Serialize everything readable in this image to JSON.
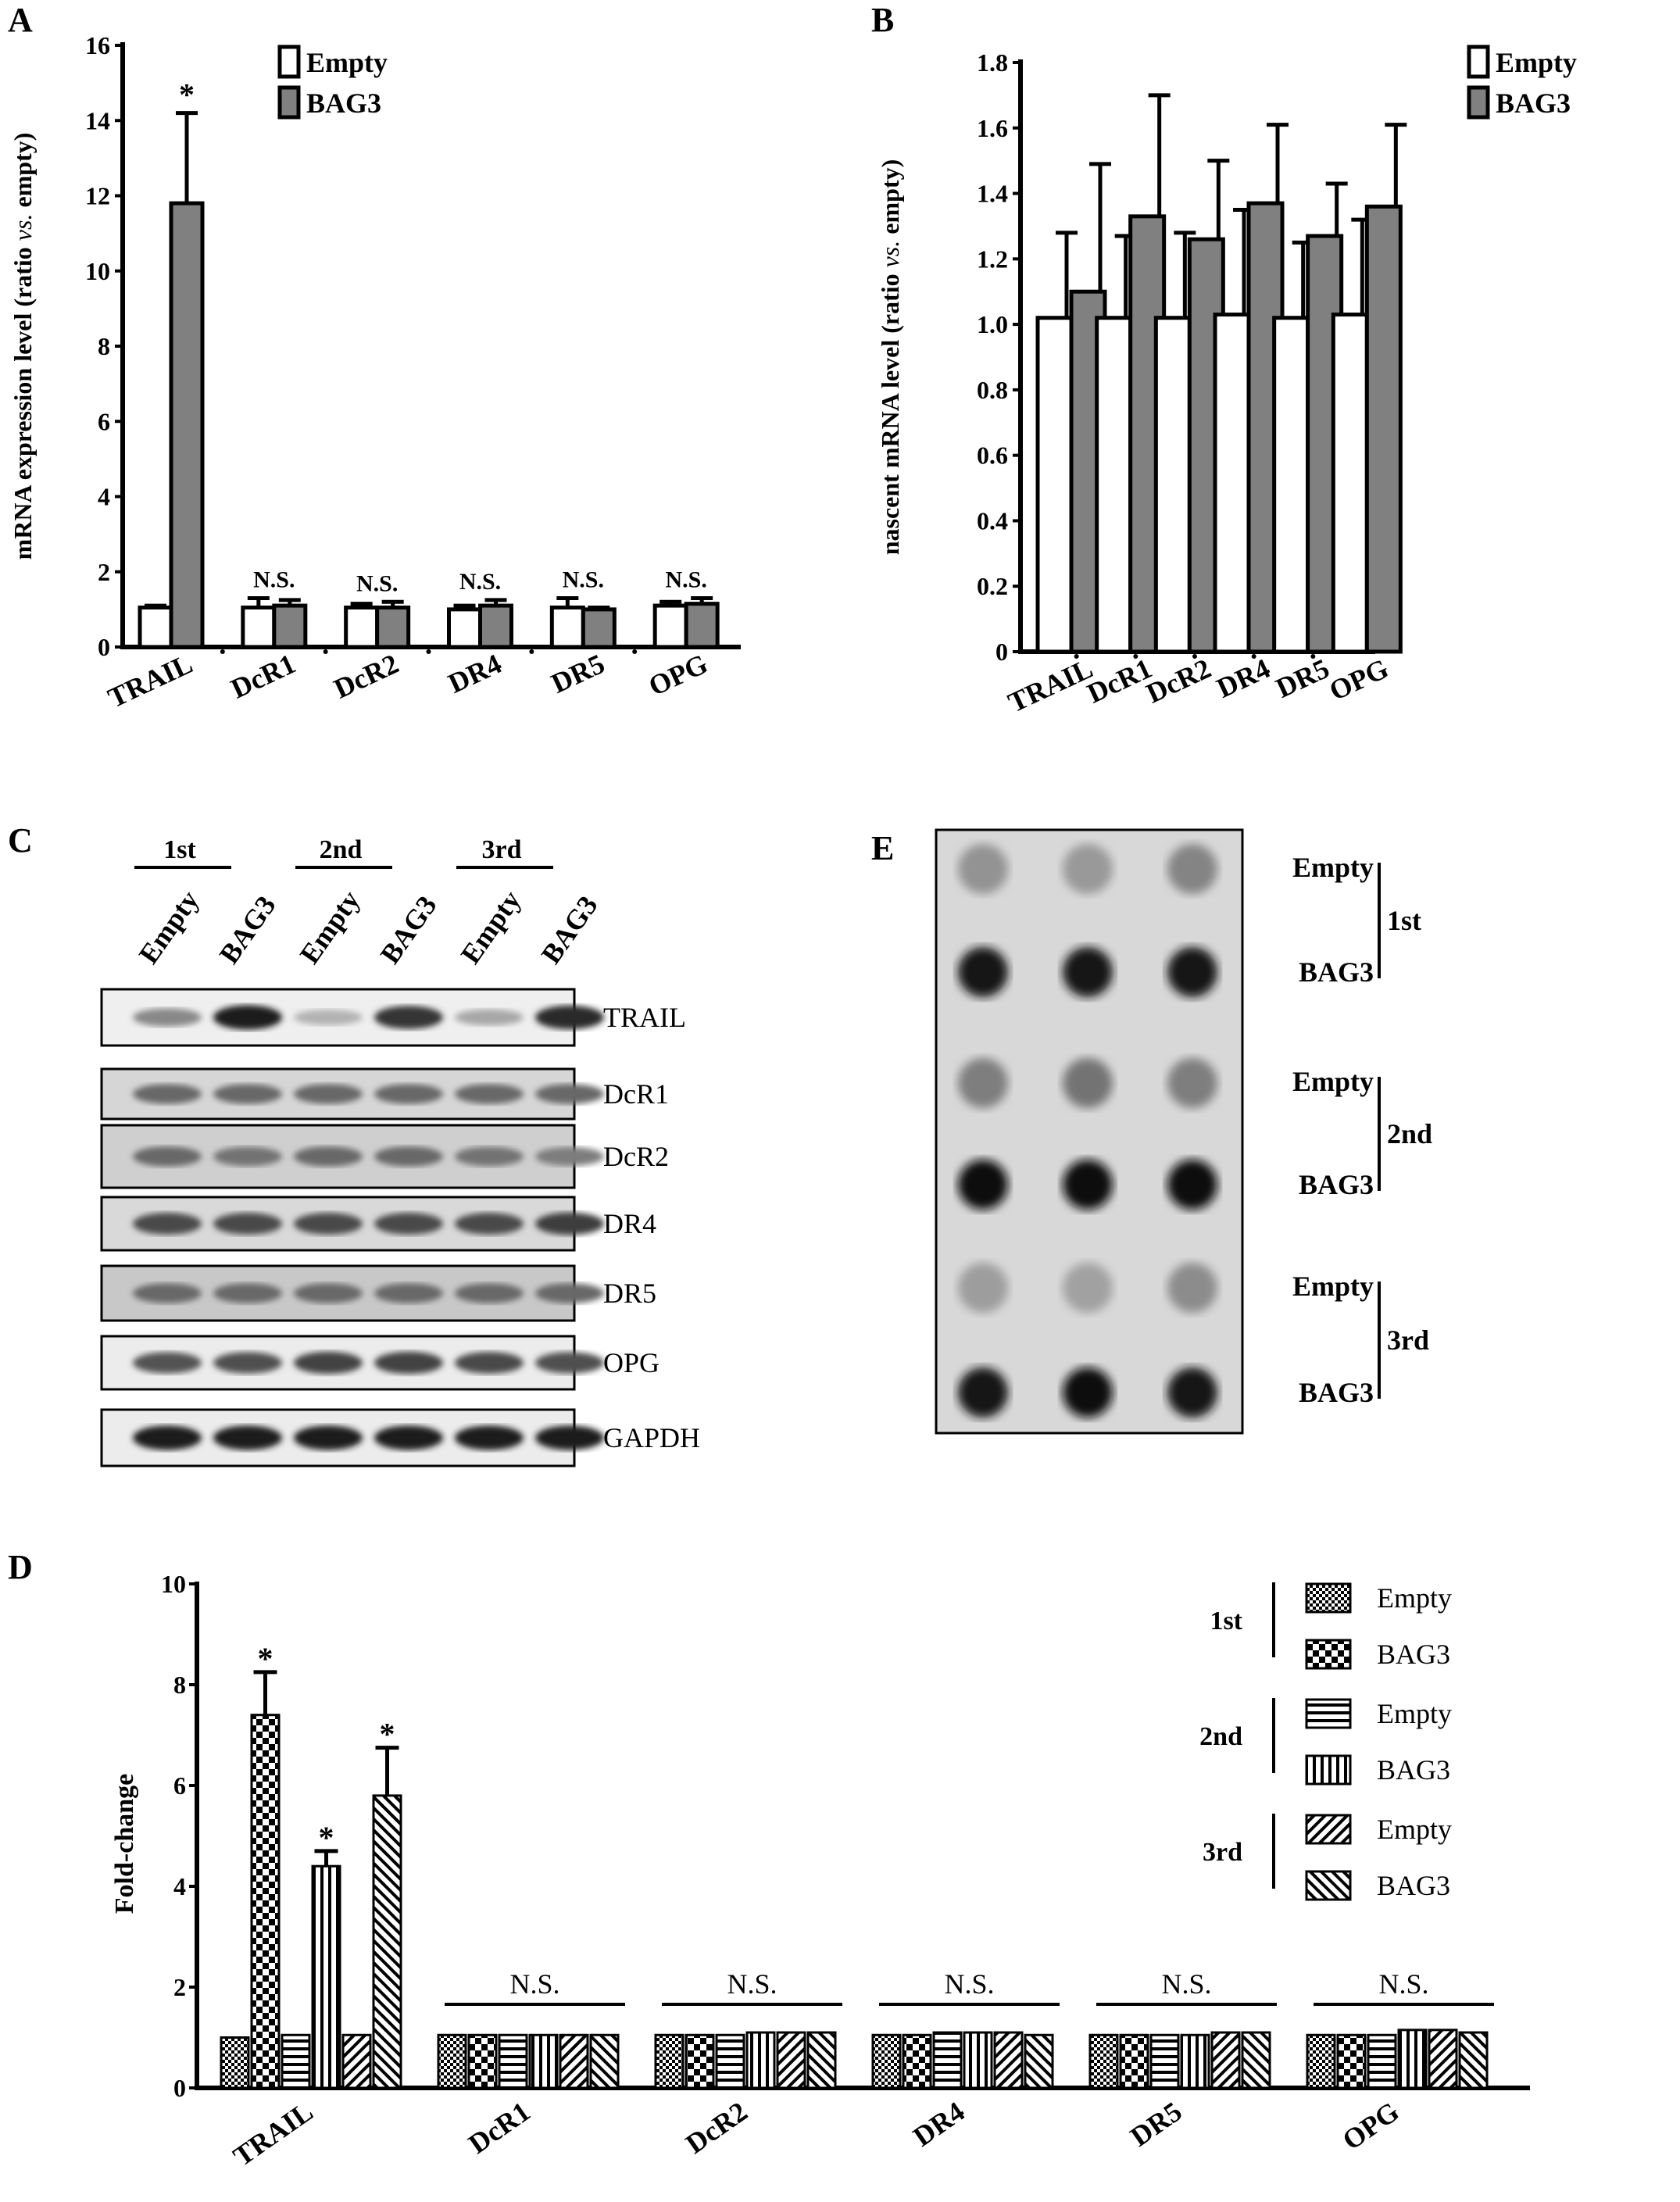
{
  "panels": {
    "A": "A",
    "B": "B",
    "C": "C",
    "D": "D",
    "E": "E"
  },
  "chart_data": [
    {
      "id": "A",
      "type": "bar",
      "categories": [
        "TRAIL",
        "DcR1",
        "DcR2",
        "DR4",
        "DR5",
        "OPG"
      ],
      "series": [
        {
          "name": "Empty",
          "values": [
            1.05,
            1.05,
            1.05,
            1.0,
            1.05,
            1.1
          ],
          "errors": [
            0.05,
            0.25,
            0.1,
            0.1,
            0.25,
            0.1
          ]
        },
        {
          "name": "BAG3",
          "values": [
            11.8,
            1.1,
            1.05,
            1.1,
            1.0,
            1.15
          ],
          "errors": [
            2.4,
            0.15,
            0.15,
            0.15,
            0.05,
            0.15
          ]
        }
      ],
      "annotations": [
        "*",
        "N.S.",
        "N.S.",
        "N.S.",
        "N.S.",
        "N.S."
      ],
      "ylabel_main": "mRNA expression level",
      "ylabel_paren_a": "(ratio ",
      "ylabel_paren_vs": "vs.",
      "ylabel_paren_b": " empty)",
      "ylim": [
        0,
        16
      ],
      "yticks": [
        "0",
        "2",
        "4",
        "6",
        "8",
        "10",
        "12",
        "14",
        "16"
      ],
      "legend": [
        "Empty",
        "BAG3"
      ],
      "colors": {
        "Empty": "#ffffff",
        "BAG3": "#808080"
      }
    },
    {
      "id": "B",
      "type": "bar",
      "categories": [
        "TRAIL",
        "DcR1",
        "DcR2",
        "DR4",
        "DR5",
        "OPG"
      ],
      "series": [
        {
          "name": "Empty",
          "values": [
            1.02,
            1.02,
            1.02,
            1.03,
            1.02,
            1.03
          ],
          "errors": [
            0.26,
            0.25,
            0.26,
            0.32,
            0.23,
            0.29
          ]
        },
        {
          "name": "BAG3",
          "values": [
            1.1,
            1.33,
            1.26,
            1.37,
            1.27,
            1.36
          ],
          "errors": [
            0.39,
            0.37,
            0.24,
            0.24,
            0.16,
            0.25
          ]
        }
      ],
      "ylabel_main": "nascent mRNA level ",
      "ylabel_paren_a": "(ratio ",
      "ylabel_paren_vs": "vs.",
      "ylabel_paren_b": " empty)",
      "ylim": [
        0,
        1.8
      ],
      "yticks": [
        "0",
        "0.2",
        "0.4",
        "0.6",
        "0.8",
        "1.0",
        "1.2",
        "1.4",
        "1.6",
        "1.8"
      ],
      "legend": [
        "Empty",
        "BAG3"
      ],
      "colors": {
        "Empty": "#ffffff",
        "BAG3": "#808080"
      }
    },
    {
      "id": "D",
      "type": "bar",
      "categories": [
        "TRAIL",
        "DcR1",
        "DcR2",
        "DR4",
        "DR5",
        "OPG"
      ],
      "series": [
        {
          "name": "1st Empty",
          "values": [
            1.0,
            1.05,
            1.05,
            1.05,
            1.05,
            1.05
          ],
          "errors": [
            0,
            0,
            0,
            0,
            0,
            0
          ]
        },
        {
          "name": "1st BAG3",
          "values": [
            7.4,
            1.05,
            1.05,
            1.05,
            1.05,
            1.05
          ],
          "errors": [
            0.85,
            0,
            0,
            0,
            0,
            0
          ]
        },
        {
          "name": "2nd Empty",
          "values": [
            1.05,
            1.05,
            1.05,
            1.1,
            1.05,
            1.05
          ],
          "errors": [
            0,
            0,
            0,
            0,
            0,
            0
          ]
        },
        {
          "name": "2nd BAG3",
          "values": [
            4.4,
            1.05,
            1.1,
            1.1,
            1.05,
            1.15
          ],
          "errors": [
            0.3,
            0,
            0,
            0,
            0,
            0
          ]
        },
        {
          "name": "3rd Empty",
          "values": [
            1.05,
            1.05,
            1.1,
            1.1,
            1.1,
            1.15
          ],
          "errors": [
            0,
            0,
            0,
            0,
            0,
            0
          ]
        },
        {
          "name": "3rd BAG3",
          "values": [
            5.8,
            1.05,
            1.1,
            1.05,
            1.1,
            1.1
          ],
          "errors": [
            0.95,
            0,
            0,
            0,
            0,
            0
          ]
        }
      ],
      "star_label": "*",
      "ns_label": "N.S.",
      "ylabel": "Fold-change",
      "ylim": [
        0,
        10
      ],
      "yticks": [
        "0",
        "2",
        "4",
        "6",
        "8",
        "10"
      ],
      "legend_groups": [
        {
          "label": "1st",
          "items": [
            "Empty",
            "BAG3"
          ]
        },
        {
          "label": "2nd",
          "items": [
            "Empty",
            "BAG3"
          ]
        },
        {
          "label": "3rd",
          "items": [
            "Empty",
            "BAG3"
          ]
        }
      ],
      "patterns": [
        "checker-small",
        "checker-large",
        "horizontal",
        "vertical",
        "diag-right",
        "diag-left"
      ]
    }
  ],
  "western_blot": {
    "groups": [
      "1st",
      "2nd",
      "3rd"
    ],
    "lanes": [
      "Empty",
      "BAG3",
      "Empty",
      "BAG3",
      "Empty",
      "BAG3"
    ],
    "rows": [
      {
        "label": "TRAIL",
        "intensity": [
          0.45,
          0.95,
          0.25,
          0.85,
          0.3,
          0.9
        ]
      },
      {
        "label": "DcR1",
        "intensity": [
          0.6,
          0.6,
          0.6,
          0.6,
          0.6,
          0.6
        ]
      },
      {
        "label": "DcR2",
        "intensity": [
          0.6,
          0.55,
          0.6,
          0.6,
          0.55,
          0.5
        ]
      },
      {
        "label": "DR4",
        "intensity": [
          0.75,
          0.75,
          0.75,
          0.75,
          0.75,
          0.8
        ]
      },
      {
        "label": "DR5",
        "intensity": [
          0.6,
          0.6,
          0.6,
          0.6,
          0.6,
          0.6
        ]
      },
      {
        "label": "OPG",
        "intensity": [
          0.7,
          0.72,
          0.78,
          0.78,
          0.75,
          0.72
        ]
      },
      {
        "label": "GAPDH",
        "intensity": [
          0.95,
          0.95,
          0.95,
          0.95,
          0.95,
          0.95
        ]
      }
    ]
  },
  "dot_blot": {
    "rows": [
      {
        "label": "Empty",
        "intensity": [
          0.35,
          0.32,
          0.42
        ]
      },
      {
        "label": "BAG3",
        "intensity": [
          0.95,
          0.95,
          0.95
        ]
      },
      {
        "label": "Empty",
        "intensity": [
          0.45,
          0.5,
          0.45
        ]
      },
      {
        "label": "BAG3",
        "intensity": [
          0.97,
          0.97,
          0.97
        ]
      },
      {
        "label": "Empty",
        "intensity": [
          0.3,
          0.28,
          0.38
        ]
      },
      {
        "label": "BAG3",
        "intensity": [
          0.93,
          0.97,
          0.93
        ]
      }
    ],
    "groups": [
      "1st",
      "2nd",
      "3rd"
    ]
  }
}
